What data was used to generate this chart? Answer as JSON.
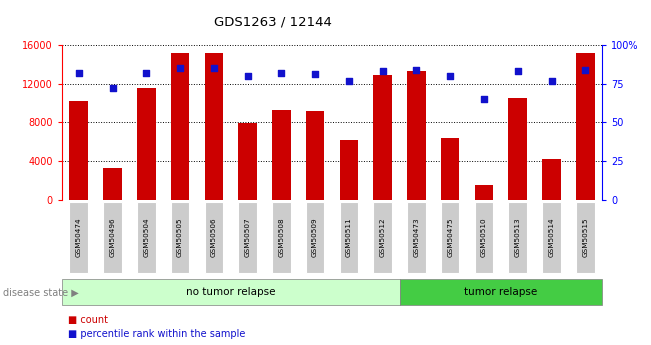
{
  "title": "GDS1263 / 12144",
  "categories": [
    "GSM50474",
    "GSM50496",
    "GSM50504",
    "GSM50505",
    "GSM50506",
    "GSM50507",
    "GSM50508",
    "GSM50509",
    "GSM50511",
    "GSM50512",
    "GSM50473",
    "GSM50475",
    "GSM50510",
    "GSM50513",
    "GSM50514",
    "GSM50515"
  ],
  "counts": [
    10200,
    3300,
    11600,
    15200,
    15200,
    7900,
    9300,
    9200,
    6200,
    12900,
    13300,
    6400,
    1600,
    10500,
    4200,
    15200
  ],
  "percentiles": [
    82,
    72,
    82,
    85,
    85,
    80,
    82,
    81,
    77,
    83,
    84,
    80,
    65,
    83,
    77,
    84
  ],
  "bar_color": "#cc0000",
  "dot_color": "#1111cc",
  "no_relapse_count": 10,
  "tumor_relapse_count": 6,
  "no_relapse_color": "#ccffcc",
  "tumor_relapse_color": "#44cc44",
  "no_relapse_label": "no tumor relapse",
  "tumor_relapse_label": "tumor relapse",
  "disease_state_label": "disease state",
  "count_label": "count",
  "percentile_label": "percentile rank within the sample",
  "ylim_left": [
    0,
    16000
  ],
  "ylim_right": [
    0,
    100
  ],
  "yticks_left": [
    0,
    4000,
    8000,
    12000,
    16000
  ],
  "yticks_right": [
    0,
    25,
    50,
    75,
    100
  ],
  "background_color": "#ffffff",
  "tick_bg_color": "#cccccc"
}
